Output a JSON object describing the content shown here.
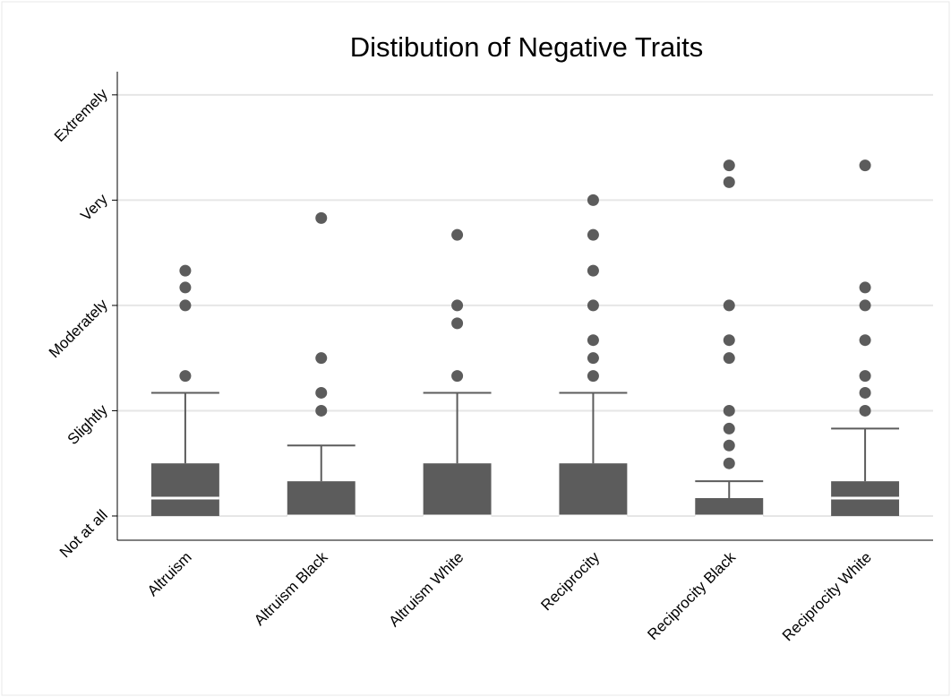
{
  "chart_data": {
    "type": "box",
    "title": "Distibution of Negative Traits",
    "categories": [
      "Altruism",
      "Altruism Black",
      "Altruism White",
      "Reciprocity",
      "Reciprocity Black",
      "Reciprocity White"
    ],
    "boxes": [
      {
        "whisker_low": 1,
        "q1": 1,
        "median": 1.17,
        "q3": 1.5,
        "whisker_high": 2.17,
        "outliers": [
          2.33,
          3,
          3.17,
          3.33
        ]
      },
      {
        "whisker_low": 1,
        "q1": 1,
        "median": 1,
        "q3": 1.33,
        "whisker_high": 1.67,
        "outliers": [
          2,
          2.17,
          2.5,
          3.83
        ]
      },
      {
        "whisker_low": 1,
        "q1": 1,
        "median": 1,
        "q3": 1.5,
        "whisker_high": 2.17,
        "outliers": [
          2.33,
          2.83,
          3,
          3.67
        ]
      },
      {
        "whisker_low": 1,
        "q1": 1,
        "median": 1,
        "q3": 1.5,
        "whisker_high": 2.17,
        "outliers": [
          2.33,
          2.5,
          2.67,
          3,
          3.33,
          3.67,
          4
        ]
      },
      {
        "whisker_low": 1,
        "q1": 1,
        "median": 1,
        "q3": 1.17,
        "whisker_high": 1.33,
        "outliers": [
          1.5,
          1.67,
          1.83,
          2,
          2.5,
          2.67,
          3,
          4.17,
          4.33
        ]
      },
      {
        "whisker_low": 1,
        "q1": 1,
        "median": 1.17,
        "q3": 1.33,
        "whisker_high": 1.83,
        "outliers": [
          2,
          2.17,
          2.33,
          2.67,
          3,
          3.17,
          4.33
        ]
      }
    ],
    "color": "#5c5c5c",
    "median_color": "#ffffff",
    "ylim": [
      0.77,
      5.22
    ],
    "yticks": [
      {
        "value": 1,
        "label": "Not at all"
      },
      {
        "value": 2,
        "label": "Slightly"
      },
      {
        "value": 3,
        "label": "Moderately"
      },
      {
        "value": 4,
        "label": "Very"
      },
      {
        "value": 5,
        "label": "Extremely"
      }
    ],
    "grid": true
  }
}
